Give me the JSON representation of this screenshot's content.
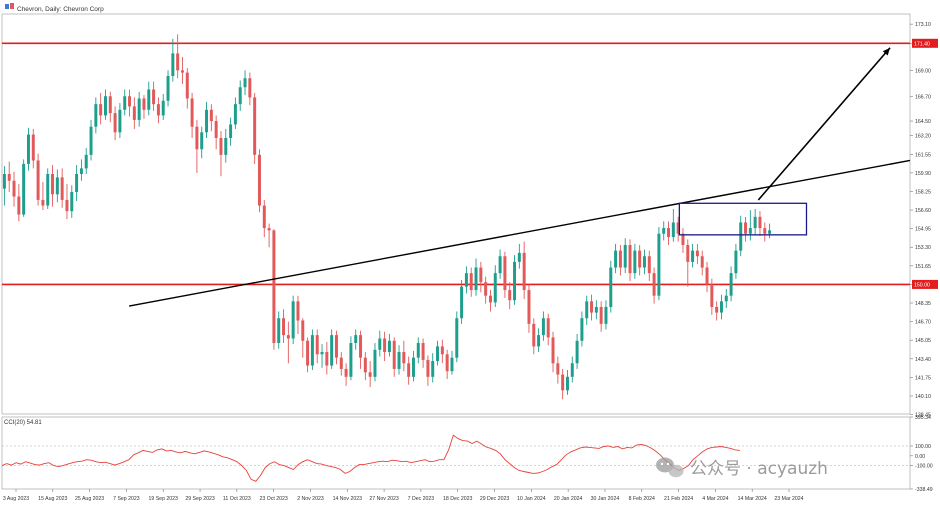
{
  "header": {
    "title": "Chevron, Daily: Chevron Corp"
  },
  "indicator": {
    "label": "CCI(20) 54.81",
    "axis_ticks": [
      "395.34",
      "100.00",
      "0.00",
      "-100.00",
      "-338.49"
    ],
    "values": [
      -100,
      -80,
      -95,
      -70,
      -85,
      -60,
      -75,
      -90,
      -95,
      -80,
      -70,
      -100,
      -110,
      -100,
      -85,
      -70,
      -60,
      -55,
      -40,
      -45,
      -60,
      -70,
      -65,
      -80,
      -95,
      -80,
      -60,
      -40,
      10,
      30,
      55,
      45,
      35,
      60,
      70,
      50,
      55,
      40,
      30,
      45,
      30,
      20,
      35,
      50,
      40,
      25,
      10,
      -10,
      -20,
      -40,
      -60,
      -100,
      -150,
      -240,
      -260,
      -200,
      -120,
      -80,
      -60,
      -90,
      -100,
      -120,
      -140,
      -90,
      -60,
      -40,
      -60,
      -80,
      -85,
      -100,
      -110,
      -120,
      -140,
      -180,
      -160,
      -120,
      -90,
      -90,
      -80,
      -70,
      -60,
      -55,
      -60,
      -45,
      -50,
      -60,
      -55,
      -70,
      -60,
      -50,
      -40,
      -60,
      -55,
      -40,
      -40,
      60,
      210,
      175,
      155,
      150,
      125,
      150,
      120,
      90,
      75,
      55,
      20,
      -40,
      -80,
      -120,
      -150,
      -160,
      -170,
      -180,
      -175,
      -160,
      -140,
      -110,
      -90,
      -40,
      10,
      40,
      60,
      80,
      90,
      85,
      80,
      75,
      95,
      100,
      85,
      95,
      70,
      85,
      80,
      110,
      115,
      105,
      80,
      50,
      10,
      -40,
      -80,
      -120,
      -150,
      -130,
      -100,
      -40,
      0,
      40,
      70,
      85,
      90,
      95,
      85,
      75,
      60,
      54.81
    ],
    "colors": {
      "line": "#e8413b",
      "levels": "#c8c8c8"
    }
  },
  "x_axis": {
    "labels": [
      "3 Aug 2023",
      "15 Aug 2023",
      "25 Aug 2023",
      "7 Sep 2023",
      "19 Sep 2023",
      "29 Sep 2023",
      "11 Oct 2023",
      "23 Oct 2023",
      "2 Nov 2023",
      "14 Nov 2023",
      "27 Nov 2023",
      "7 Dec 2023",
      "18 Dec 2023",
      "29 Dec 2023",
      "10 Jan 2024",
      "20 Jan 2024",
      "30 Jan 2024",
      "8 Feb 2024",
      "21 Feb 2024",
      "4 Mar 2024",
      "14 Mar 2024",
      "23 Mar 2024"
    ]
  },
  "watermark": "公众号 · acyauzh",
  "chart_data": {
    "type": "candlestick",
    "title": "Chevron, Daily: Chevron Corp",
    "y_range": [
      138.5,
      174.0
    ],
    "y_ticks": [
      "173.10",
      "171.40",
      "169.00",
      "166.70",
      "164.50",
      "163.20",
      "161.55",
      "159.90",
      "158.25",
      "156.60",
      "154.95",
      "153.30",
      "151.65",
      "150.00",
      "148.35",
      "146.70",
      "145.05",
      "143.40",
      "141.75",
      "140.10",
      "138.45"
    ],
    "price_labels": [
      {
        "value": 171.4,
        "text": "171.40"
      },
      {
        "value": 150.0,
        "text": "150.00"
      }
    ],
    "horizontal_levels": [
      171.4,
      150.0
    ],
    "candles": [
      [
        158.5,
        159.8,
        157.0,
        160.5
      ],
      [
        159.8,
        159.2,
        158.2,
        160.9
      ],
      [
        159.2,
        157.8,
        156.9,
        160.0
      ],
      [
        157.8,
        156.2,
        155.6,
        158.9
      ],
      [
        156.2,
        160.7,
        156.0,
        161.1
      ],
      [
        160.7,
        163.3,
        160.1,
        163.9
      ],
      [
        163.3,
        161.0,
        160.3,
        163.8
      ],
      [
        161.0,
        157.5,
        157.0,
        161.6
      ],
      [
        157.5,
        157.0,
        156.6,
        159.1
      ],
      [
        157.0,
        159.8,
        156.7,
        160.3
      ],
      [
        159.8,
        158.0,
        156.9,
        160.6
      ],
      [
        158.0,
        159.5,
        157.3,
        160.2
      ],
      [
        159.5,
        157.5,
        156.8,
        160.3
      ],
      [
        157.5,
        156.5,
        155.8,
        158.9
      ],
      [
        156.5,
        158.2,
        155.9,
        158.8
      ],
      [
        158.2,
        159.8,
        157.4,
        160.6
      ],
      [
        159.8,
        160.3,
        159.2,
        161.1
      ],
      [
        160.3,
        161.5,
        159.8,
        162.1
      ],
      [
        161.5,
        164.0,
        161.0,
        164.6
      ],
      [
        164.0,
        166.0,
        163.4,
        166.6
      ],
      [
        166.0,
        165.0,
        164.2,
        167.0
      ],
      [
        165.0,
        166.7,
        164.6,
        167.3
      ],
      [
        166.7,
        165.2,
        164.4,
        167.1
      ],
      [
        165.2,
        163.5,
        162.8,
        165.8
      ],
      [
        163.5,
        165.5,
        163.0,
        166.1
      ],
      [
        165.5,
        166.7,
        165.0,
        167.3
      ],
      [
        166.7,
        165.8,
        164.9,
        167.3
      ],
      [
        165.8,
        164.6,
        163.8,
        166.6
      ],
      [
        164.6,
        166.5,
        164.0,
        167.1
      ],
      [
        166.5,
        165.5,
        164.7,
        166.8
      ],
      [
        165.5,
        167.3,
        165.0,
        168.0
      ],
      [
        167.3,
        166.0,
        165.4,
        168.0
      ],
      [
        166.0,
        165.0,
        164.3,
        166.6
      ],
      [
        165.0,
        166.3,
        164.6,
        166.9
      ],
      [
        166.3,
        168.5,
        165.8,
        169.0
      ],
      [
        168.5,
        170.5,
        168.0,
        171.8
      ],
      [
        170.5,
        169.0,
        168.3,
        172.2
      ],
      [
        169.0,
        168.8,
        167.8,
        170.2
      ],
      [
        168.8,
        166.5,
        165.6,
        169.2
      ],
      [
        166.5,
        164.0,
        163.0,
        167.0
      ],
      [
        164.0,
        162.0,
        159.9,
        164.6
      ],
      [
        162.0,
        163.5,
        161.2,
        164.0
      ],
      [
        163.5,
        165.5,
        163.0,
        166.2
      ],
      [
        165.5,
        164.5,
        163.6,
        166.0
      ],
      [
        164.5,
        163.0,
        162.0,
        165.0
      ],
      [
        163.0,
        161.5,
        159.6,
        163.6
      ],
      [
        161.5,
        163.0,
        160.8,
        163.8
      ],
      [
        163.0,
        164.2,
        162.3,
        164.8
      ],
      [
        164.2,
        166.0,
        163.8,
        166.6
      ],
      [
        166.0,
        167.5,
        165.4,
        168.1
      ],
      [
        167.5,
        168.3,
        166.8,
        169.0
      ],
      [
        168.3,
        166.6,
        165.9,
        168.8
      ],
      [
        166.6,
        161.5,
        160.7,
        167.0
      ],
      [
        161.5,
        157.0,
        156.4,
        162.0
      ],
      [
        157.0,
        155.0,
        154.2,
        157.5
      ],
      [
        155.0,
        154.8,
        153.3,
        155.4
      ],
      [
        154.8,
        144.8,
        144.2,
        154.9
      ],
      [
        144.8,
        147.0,
        144.3,
        147.6
      ],
      [
        147.0,
        145.5,
        144.8,
        147.8
      ],
      [
        145.5,
        145.2,
        143.0,
        146.7
      ],
      [
        145.2,
        148.5,
        144.7,
        149.0
      ],
      [
        148.5,
        146.8,
        145.6,
        149.0
      ],
      [
        146.8,
        145.0,
        143.5,
        147.0
      ],
      [
        145.0,
        142.8,
        142.2,
        145.3
      ],
      [
        142.8,
        145.5,
        142.4,
        146.0
      ],
      [
        145.5,
        143.8,
        143.0,
        146.0
      ],
      [
        143.8,
        144.0,
        142.6,
        144.7
      ],
      [
        144.0,
        142.8,
        142.0,
        144.9
      ],
      [
        142.8,
        145.5,
        142.5,
        146.0
      ],
      [
        145.5,
        143.5,
        142.9,
        145.9
      ],
      [
        143.5,
        142.5,
        141.9,
        144.0
      ],
      [
        142.5,
        141.8,
        141.0,
        143.0
      ],
      [
        141.8,
        144.8,
        141.5,
        145.4
      ],
      [
        144.8,
        145.5,
        144.2,
        146.0
      ],
      [
        145.5,
        143.5,
        142.5,
        145.9
      ],
      [
        143.5,
        142.2,
        141.5,
        144.0
      ],
      [
        142.2,
        141.8,
        140.9,
        143.2
      ],
      [
        141.8,
        144.2,
        141.4,
        144.8
      ],
      [
        144.2,
        145.2,
        143.6,
        145.9
      ],
      [
        145.2,
        144.0,
        143.2,
        145.8
      ],
      [
        144.0,
        145.0,
        143.6,
        145.6
      ],
      [
        145.0,
        142.5,
        141.8,
        145.3
      ],
      [
        142.5,
        144.0,
        142.0,
        144.6
      ],
      [
        144.0,
        143.0,
        142.3,
        145.0
      ],
      [
        143.0,
        141.8,
        141.1,
        143.6
      ],
      [
        141.8,
        143.5,
        141.4,
        144.1
      ],
      [
        143.5,
        144.8,
        143.0,
        145.3
      ],
      [
        144.8,
        143.3,
        142.6,
        145.2
      ],
      [
        143.3,
        141.8,
        141.0,
        143.7
      ],
      [
        141.8,
        143.2,
        141.3,
        143.9
      ],
      [
        143.2,
        144.5,
        142.8,
        145.0
      ],
      [
        144.5,
        143.8,
        143.0,
        145.1
      ],
      [
        143.8,
        142.3,
        141.6,
        144.2
      ],
      [
        142.3,
        143.5,
        142.0,
        144.1
      ],
      [
        143.5,
        147.0,
        143.1,
        147.6
      ],
      [
        147.0,
        149.8,
        146.5,
        150.4
      ],
      [
        149.8,
        151.0,
        149.2,
        151.6
      ],
      [
        151.0,
        149.5,
        148.9,
        151.5
      ],
      [
        149.5,
        151.5,
        149.0,
        152.3
      ],
      [
        151.5,
        150.2,
        149.3,
        152.0
      ],
      [
        150.2,
        149.0,
        148.3,
        150.7
      ],
      [
        149.0,
        148.4,
        147.6,
        149.5
      ],
      [
        148.4,
        151.0,
        148.0,
        151.7
      ],
      [
        151.0,
        152.5,
        150.5,
        153.1
      ],
      [
        152.5,
        149.5,
        148.8,
        152.9
      ],
      [
        149.5,
        148.6,
        147.8,
        150.2
      ],
      [
        148.6,
        152.0,
        148.2,
        152.6
      ],
      [
        152.0,
        152.8,
        151.4,
        153.6
      ],
      [
        152.8,
        149.5,
        148.7,
        153.8
      ],
      [
        149.5,
        146.5,
        145.7,
        150.0
      ],
      [
        146.5,
        144.5,
        143.8,
        147.0
      ],
      [
        144.5,
        145.5,
        144.0,
        146.1
      ],
      [
        145.5,
        147.0,
        145.0,
        147.6
      ],
      [
        147.0,
        145.3,
        144.6,
        147.4
      ],
      [
        145.3,
        143.0,
        142.2,
        145.8
      ],
      [
        143.0,
        142.0,
        141.2,
        143.6
      ],
      [
        142.0,
        140.6,
        139.8,
        142.5
      ],
      [
        140.6,
        141.8,
        140.2,
        142.4
      ],
      [
        141.8,
        143.0,
        141.3,
        143.6
      ],
      [
        143.0,
        145.0,
        142.5,
        145.6
      ],
      [
        145.0,
        147.0,
        144.5,
        147.6
      ],
      [
        147.0,
        148.5,
        146.4,
        149.0
      ],
      [
        148.5,
        147.5,
        146.8,
        149.1
      ],
      [
        147.5,
        148.0,
        146.9,
        148.6
      ],
      [
        148.0,
        146.5,
        145.8,
        148.5
      ],
      [
        146.5,
        148.0,
        146.0,
        148.6
      ],
      [
        148.0,
        151.5,
        147.5,
        152.1
      ],
      [
        151.5,
        153.0,
        151.0,
        153.6
      ],
      [
        153.0,
        151.5,
        150.8,
        153.5
      ],
      [
        151.5,
        153.5,
        151.0,
        154.1
      ],
      [
        153.5,
        151.0,
        150.3,
        154.0
      ],
      [
        151.0,
        153.0,
        150.5,
        153.6
      ],
      [
        153.0,
        151.5,
        150.8,
        153.5
      ],
      [
        151.5,
        152.5,
        150.9,
        153.1
      ],
      [
        152.5,
        151.0,
        150.3,
        153.0
      ],
      [
        151.0,
        149.0,
        148.3,
        151.5
      ],
      [
        149.0,
        154.5,
        148.6,
        155.1
      ],
      [
        154.5,
        155.0,
        153.9,
        155.6
      ],
      [
        155.0,
        154.2,
        153.5,
        155.6
      ],
      [
        154.2,
        155.5,
        153.8,
        156.7
      ],
      [
        155.5,
        154.5,
        153.8,
        156.0
      ],
      [
        154.5,
        153.5,
        152.8,
        155.0
      ],
      [
        153.5,
        152.0,
        149.8,
        154.0
      ],
      [
        152.0,
        153.0,
        151.5,
        153.6
      ],
      [
        153.0,
        152.5,
        151.8,
        153.6
      ],
      [
        152.5,
        151.5,
        150.8,
        153.0
      ],
      [
        151.5,
        150.0,
        149.3,
        152.0
      ],
      [
        150.0,
        148.0,
        147.3,
        150.5
      ],
      [
        148.0,
        147.5,
        146.8,
        148.5
      ],
      [
        147.5,
        148.5,
        146.9,
        149.1
      ],
      [
        148.5,
        149.0,
        147.9,
        149.6
      ],
      [
        149.0,
        151.0,
        148.5,
        151.6
      ],
      [
        151.0,
        153.0,
        150.5,
        153.6
      ],
      [
        153.0,
        155.5,
        152.5,
        156.1
      ],
      [
        155.5,
        154.5,
        153.8,
        156.0
      ],
      [
        154.5,
        155.0,
        153.9,
        156.6
      ],
      [
        155.0,
        156.0,
        154.4,
        156.7
      ],
      [
        156.0,
        155.0,
        154.3,
        156.5
      ],
      [
        155.0,
        154.5,
        153.8,
        155.5
      ],
      [
        154.5,
        154.8,
        154.1,
        155.4
      ]
    ],
    "trendline": {
      "points": [
        [
          0.14,
          148.08
        ],
        [
          1.0,
          161.0
        ]
      ]
    },
    "arrow": {
      "from": [
        0.833,
        157.5
      ],
      "to": [
        0.978,
        171.0
      ]
    },
    "highlight_box": {
      "x": [
        0.746,
        0.886
      ],
      "y": [
        154.4,
        157.2
      ]
    },
    "colors": {
      "up": "#1e9e8c",
      "down": "#e2595a",
      "levels": "#e11d1d",
      "trendline": "#000000",
      "box": "#1a1a8c",
      "axis_text": "#333333",
      "label_bg": "#e11d1d"
    }
  }
}
